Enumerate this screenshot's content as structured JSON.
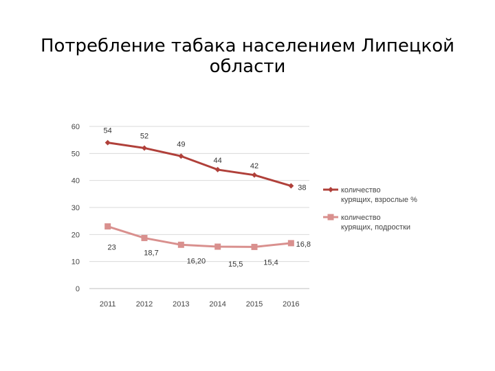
{
  "slide": {
    "title": "Потребление табака населением Липецкой области"
  },
  "chart_data": {
    "type": "line",
    "title": "",
    "xlabel": "",
    "ylabel": "",
    "x": [
      "2011",
      "2012",
      "2013",
      "2014",
      "2015",
      "2016"
    ],
    "ylim": [
      0,
      60
    ],
    "yticks": [
      "0",
      "10",
      "20",
      "30",
      "40",
      "50",
      "60"
    ],
    "grid": true,
    "legend_position": "right",
    "series": [
      {
        "name": "количество курящих, взрослые %",
        "legend_lines": [
          "количество",
          "курящих, взрослые %"
        ],
        "values": [
          54,
          52,
          49,
          44,
          42,
          38
        ],
        "labels": [
          "54",
          "52",
          "49",
          "44",
          "42",
          "38"
        ],
        "color": "#b0403a",
        "marker": "diamond"
      },
      {
        "name": "количество курящих, подростки",
        "legend_lines": [
          "количество",
          "курящих, подростки"
        ],
        "values": [
          23,
          18.7,
          16.2,
          15.5,
          15.4,
          16.8
        ],
        "labels": [
          "23",
          "18,7",
          "16,20",
          "15,5",
          "15,4",
          "16,8"
        ],
        "color": "#d9908e",
        "marker": "square"
      }
    ]
  }
}
